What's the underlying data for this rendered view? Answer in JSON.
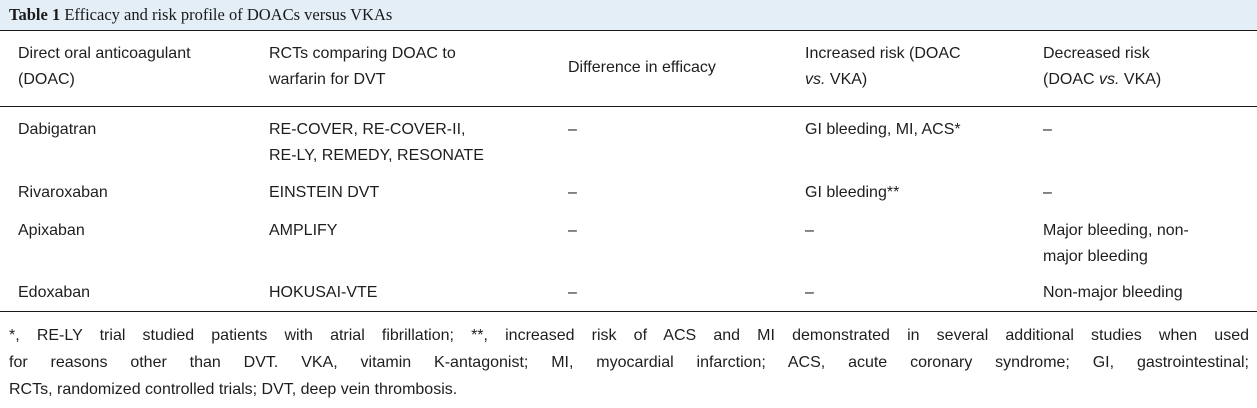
{
  "caption": {
    "label": "Table 1",
    "title": "Efficacy and risk profile of DOACs versus VKAs"
  },
  "table": {
    "headers": [
      [
        "Direct oral anticoagulant",
        "(DOAC)"
      ],
      [
        "RCTs comparing DOAC to",
        "warfarin for DVT"
      ],
      [
        "Difference in efficacy"
      ],
      [
        "Increased risk (DOAC",
        "vs. VKA)"
      ],
      [
        "Decreased risk",
        "(DOAC vs. VKA)"
      ]
    ],
    "rows": [
      {
        "drug": "Dabigatran",
        "rcts": [
          "RE-COVER, RE-COVER-II,",
          "RE-LY, REMEDY, RESONATE"
        ],
        "efficacy": "–",
        "increased": "GI bleeding, MI, ACS*",
        "decreased": [
          "–"
        ]
      },
      {
        "drug": "Rivaroxaban",
        "rcts": [
          "EINSTEIN DVT"
        ],
        "efficacy": "–",
        "increased": "GI bleeding**",
        "decreased": [
          "–"
        ]
      },
      {
        "drug": "Apixaban",
        "rcts": [
          "AMPLIFY"
        ],
        "efficacy": "–",
        "increased": "–",
        "decreased": [
          "Major bleeding, non-",
          "major bleeding"
        ]
      },
      {
        "drug": "Edoxaban",
        "rcts": [
          "HOKUSAI-VTE"
        ],
        "efficacy": "–",
        "increased": "–",
        "decreased": [
          "Non-major bleeding"
        ]
      }
    ]
  },
  "footnote": [
    "*, RE-LY trial studied patients with atrial fibrillation; **, increased risk of ACS and MI demonstrated in several additional studies when used",
    "for reasons other than DVT. VKA, vitamin K-antagonist; MI, myocardial infarction; ACS, acute coronary syndrome; GI, gastrointestinal;",
    "RCTs, randomized controlled trials; DVT, deep vein thrombosis."
  ],
  "colors": {
    "caption_background": "#e4eef7",
    "rule": "#1a1a1a",
    "text": "#1e1e1e"
  }
}
